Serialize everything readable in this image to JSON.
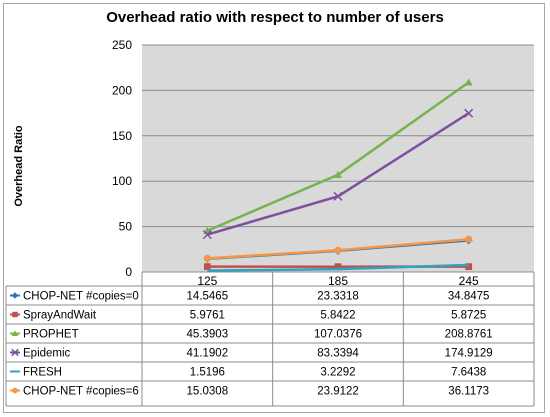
{
  "chart_data": {
    "type": "line",
    "title": "Overhead ratio with respect to number of users",
    "xlabel": "",
    "ylabel": "Overhead Ratio",
    "categories": [
      "125",
      "185",
      "245"
    ],
    "ylim": [
      0,
      250
    ],
    "yticks": [
      0,
      50,
      100,
      150,
      200,
      250
    ],
    "grid": true,
    "legend": "data-table",
    "series": [
      {
        "name": "CHOP-NET #copies=0",
        "color": "#2e75b6",
        "marker": "diamond",
        "values": [
          14.5465,
          23.3318,
          34.8475
        ],
        "labels": [
          "14.5465",
          "23.3318",
          "34.8475"
        ]
      },
      {
        "name": "SprayAndWait",
        "color": "#c0504d",
        "marker": "square",
        "values": [
          5.9761,
          5.8422,
          5.8725
        ],
        "labels": [
          "5.9761",
          "5.8422",
          "5.8725"
        ]
      },
      {
        "name": "PROPHET",
        "color": "#77b24b",
        "marker": "triangle",
        "values": [
          45.3903,
          107.0376,
          208.8761
        ],
        "labels": [
          "45.3903",
          "107.0376",
          "208.8761"
        ]
      },
      {
        "name": "Epidemic",
        "color": "#7f4f9e",
        "marker": "x",
        "values": [
          41.1902,
          83.3394,
          174.9129
        ],
        "labels": [
          "41.1902",
          "83.3394",
          "174.9129"
        ]
      },
      {
        "name": "FRESH",
        "color": "#2fa3bd",
        "marker": "none",
        "values": [
          1.5196,
          3.2292,
          7.6438
        ],
        "labels": [
          "1.5196",
          "3.2292",
          "7.6438"
        ]
      },
      {
        "name": "CHOP-NET #copies=6",
        "color": "#f79646",
        "marker": "circle",
        "values": [
          15.0308,
          23.9122,
          36.1173
        ],
        "labels": [
          "15.0308",
          "23.9122",
          "36.1173"
        ]
      }
    ]
  }
}
